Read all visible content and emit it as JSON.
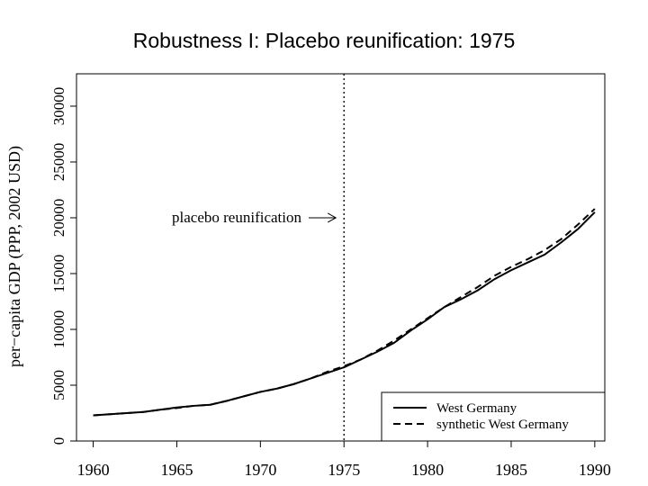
{
  "chart_data": {
    "type": "line",
    "title": "Robustness I: Placebo reunification: 1975",
    "y_label": "per−capita GDP (PPP, 2002 USD)",
    "x": [
      1960,
      1961,
      1962,
      1963,
      1964,
      1965,
      1966,
      1967,
      1968,
      1969,
      1970,
      1971,
      1972,
      1973,
      1974,
      1975,
      1976,
      1977,
      1978,
      1979,
      1980,
      1981,
      1982,
      1983,
      1984,
      1985,
      1986,
      1987,
      1988,
      1989,
      1990
    ],
    "series": [
      {
        "name": "West Germany",
        "color": "#000000",
        "dash": "solid",
        "values": [
          2300,
          2400,
          2500,
          2600,
          2800,
          3000,
          3150,
          3250,
          3600,
          4000,
          4400,
          4700,
          5100,
          5600,
          6100,
          6600,
          7300,
          8000,
          8800,
          9900,
          10900,
          12000,
          12700,
          13500,
          14500,
          15300,
          16000,
          16700,
          17800,
          19000,
          20500
        ]
      },
      {
        "name": "synthetic West Germany",
        "color": "#000000",
        "dash": "dashed",
        "values": [
          2300,
          2400,
          2500,
          2600,
          2800,
          2950,
          3150,
          3250,
          3600,
          4000,
          4400,
          4700,
          5100,
          5600,
          6200,
          6700,
          7300,
          8100,
          9000,
          10000,
          11000,
          12000,
          12900,
          13800,
          14800,
          15600,
          16300,
          17100,
          18100,
          19400,
          20800
        ]
      }
    ],
    "treatment_year": 1975,
    "annotation": {
      "text": "placebo reunification",
      "y": 20000
    },
    "xlim": [
      1959,
      1990.6
    ],
    "xticks": [
      1960,
      1965,
      1970,
      1975,
      1980,
      1985,
      1990
    ],
    "ylim": [
      0,
      32900
    ],
    "yticks": [
      0,
      5000,
      10000,
      15000,
      20000,
      25000,
      30000
    ],
    "legend": "bottom-right",
    "grid": false
  }
}
